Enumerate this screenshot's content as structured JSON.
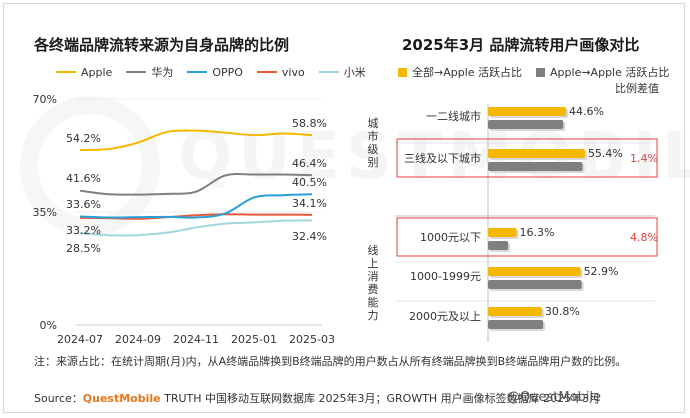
{
  "left": {
    "title": "各终端品牌流转来源为自身品牌的比例"
  },
  "right": {
    "title": "2025年3月 品牌流转用户画像对比",
    "diff_label": "比例差值"
  },
  "note": "注：来源占比：在统计周期(月)内，从A终端品牌换到B终端品牌的用户数占从所有终端品牌换到B终端品牌用户数的比例。",
  "source": {
    "prefix": "Source：",
    "brand": "QuestMobile",
    "text": " TRUTH 中国移动互联网数据库 2025年3月；GROWTH 用户画像标签数据库 2025年3月"
  },
  "corner_mark": "@QuestMobile",
  "colors": {
    "Apple": "#f5b800",
    "华为": "#7f7f7f",
    "OPPO": "#2a9fdc",
    "vivo": "#e8593a",
    "小米": "#9fd8dc",
    "highlight_box": "#e04040",
    "diff_text": "#e04040"
  },
  "chart_data": [
    {
      "type": "line",
      "x": [
        "2024-07",
        "2024-08",
        "2024-09",
        "2024-10",
        "2024-11",
        "2024-12",
        "2025-01",
        "2025-02",
        "2025-03"
      ],
      "xticks": [
        "2024-07",
        "2024-09",
        "2024-11",
        "2025-01",
        "2025-03"
      ],
      "yticks": [
        "0%",
        "35%",
        "70%"
      ],
      "ylim": [
        0,
        70
      ],
      "series": [
        {
          "name": "Apple",
          "values": [
            54.2,
            54.5,
            56.5,
            59.8,
            60.2,
            59.6,
            58.8,
            59.3,
            58.8
          ],
          "start_label": "54.2%",
          "end_label": "58.8%"
        },
        {
          "name": "华为",
          "values": [
            41.6,
            40.5,
            40.4,
            40.6,
            41.3,
            46.3,
            46.6,
            46.6,
            46.4
          ],
          "start_label": "41.6%",
          "end_label": "46.4%"
        },
        {
          "name": "OPPO",
          "values": [
            33.6,
            33.3,
            33.4,
            33.5,
            33.3,
            34.5,
            39.5,
            40.2,
            40.5
          ],
          "start_label": "33.6%",
          "end_label": "40.5%"
        },
        {
          "name": "vivo",
          "values": [
            33.2,
            33.1,
            32.9,
            33.4,
            34.0,
            34.3,
            34.2,
            34.2,
            34.1
          ],
          "start_label": "33.2%",
          "end_label": "34.1%"
        },
        {
          "name": "小米",
          "values": [
            28.5,
            27.8,
            27.8,
            28.6,
            30.2,
            31.4,
            31.8,
            32.3,
            32.4
          ],
          "start_label": "28.5%",
          "end_label": "32.4%"
        }
      ]
    },
    {
      "type": "bar",
      "orientation": "horizontal",
      "series": [
        {
          "name": "全部→Apple 活跃占比"
        },
        {
          "name": "Apple→Apple 活跃占比"
        }
      ],
      "groups": [
        {
          "label": "城市级别",
          "rows": [
            {
              "category": "一二线城市",
              "value": 44.6,
              "value_label": "44.6%",
              "compare": 43.0,
              "diff": ""
            },
            {
              "category": "三线及以下城市",
              "value": 55.4,
              "value_label": "55.4%",
              "compare": 54.0,
              "diff": "1.4%"
            }
          ]
        },
        {
          "label": "线上消费能力",
          "rows": [
            {
              "category": "1000元以下",
              "value": 16.3,
              "value_label": "16.3%",
              "compare": 11.5,
              "diff": "4.8%"
            },
            {
              "category": "1000-1999元",
              "value": 52.9,
              "value_label": "52.9%",
              "compare": 53.5,
              "diff": ""
            },
            {
              "category": "2000元及以上",
              "value": 30.8,
              "value_label": "30.8%",
              "compare": 31.5,
              "diff": ""
            }
          ]
        }
      ]
    }
  ]
}
